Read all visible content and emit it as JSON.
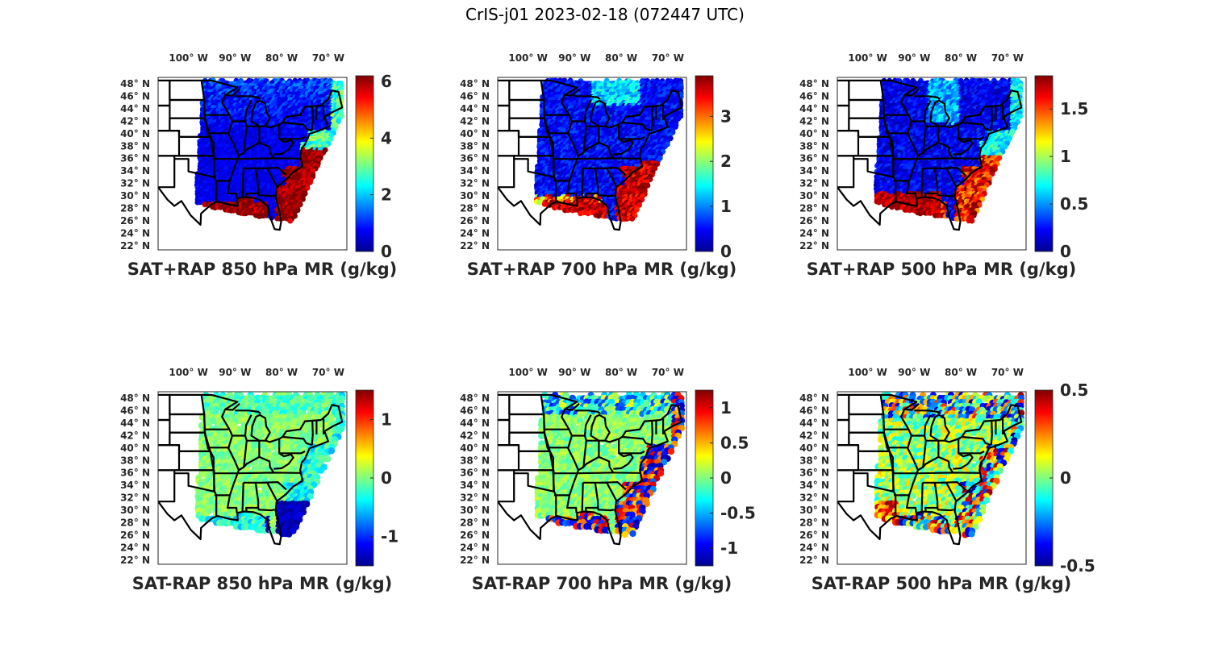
{
  "figure": {
    "title": "CrIS-j01 2023-02-18 (072447 UTC)"
  },
  "colormap": [
    "#00008f",
    "#0000ff",
    "#0080ff",
    "#00ffff",
    "#80ff80",
    "#ffff00",
    "#ff8000",
    "#ff0000",
    "#800000"
  ],
  "chart_data": [
    {
      "type": "heatmap",
      "title": "SAT+RAP 850 hPa MR (g/kg)",
      "xticklabels": [
        "100° W",
        "90° W",
        "80° W",
        "70° W"
      ],
      "yticklabels": [
        "48° N",
        "46° N",
        "44° N",
        "42° N",
        "40° N",
        "38° N",
        "36° N",
        "34° N",
        "32° N",
        "30° N",
        "28° N",
        "26° N",
        "24° N",
        "22° N"
      ],
      "colorbar": {
        "min": 0,
        "max": 6.2,
        "ticks": [
          0,
          2,
          4,
          6
        ],
        "ticklabels": [
          "0",
          "2",
          "4",
          "6"
        ]
      },
      "field": "sum",
      "summary": {
        "land_typical": 0.8,
        "atlantic_coast_max": 6.2
      }
    },
    {
      "type": "heatmap",
      "title": "SAT+RAP 700 hPa MR (g/kg)",
      "xticklabels": [
        "100° W",
        "90° W",
        "80° W",
        "70° W"
      ],
      "yticklabels": [
        "48° N",
        "46° N",
        "44° N",
        "42° N",
        "40° N",
        "38° N",
        "36° N",
        "34° N",
        "32° N",
        "30° N",
        "28° N",
        "26° N",
        "24° N",
        "22° N"
      ],
      "colorbar": {
        "min": 0,
        "max": 3.9,
        "ticks": [
          0,
          1,
          2,
          3
        ],
        "ticklabels": [
          "0",
          "1",
          "2",
          "3"
        ]
      },
      "field": "sum",
      "summary": {
        "land_typical": 0.5,
        "atlantic_coast_max": 3.9
      }
    },
    {
      "type": "heatmap",
      "title": "SAT+RAP 500 hPa MR (g/kg)",
      "xticklabels": [
        "100° W",
        "90° W",
        "80° W",
        "70° W"
      ],
      "yticklabels": [
        "48° N",
        "46° N",
        "44° N",
        "42° N",
        "40° N",
        "38° N",
        "36° N",
        "34° N",
        "32° N",
        "30° N",
        "28° N",
        "26° N",
        "24° N",
        "22° N"
      ],
      "colorbar": {
        "min": 0,
        "max": 1.85,
        "ticks": [
          0,
          0.5,
          1,
          1.5
        ],
        "ticklabels": [
          "0",
          "0.5",
          "1",
          "1.5"
        ]
      },
      "field": "sum",
      "summary": {
        "land_typical": 0.25,
        "gulf_coast_max": 1.85
      }
    },
    {
      "type": "heatmap",
      "title": "SAT-RAP 850 hPa MR (g/kg)",
      "xticklabels": [
        "100° W",
        "90° W",
        "80° W",
        "70° W"
      ],
      "yticklabels": [
        "48° N",
        "46° N",
        "44° N",
        "42° N",
        "40° N",
        "38° N",
        "36° N",
        "34° N",
        "32° N",
        "30° N",
        "28° N",
        "26° N",
        "24° N",
        "22° N"
      ],
      "colorbar": {
        "min": -1.5,
        "max": 1.5,
        "ticks": [
          -1,
          0,
          1
        ],
        "ticklabels": [
          "-1",
          "0",
          "1"
        ]
      },
      "field": "diff",
      "summary": {
        "land_typical": 0,
        "offshore_min": -1.5
      }
    },
    {
      "type": "heatmap",
      "title": "SAT-RAP 700 hPa MR (g/kg)",
      "xticklabels": [
        "100° W",
        "90° W",
        "80° W",
        "70° W"
      ],
      "yticklabels": [
        "48° N",
        "46° N",
        "44° N",
        "42° N",
        "40° N",
        "38° N",
        "36° N",
        "34° N",
        "32° N",
        "30° N",
        "28° N",
        "26° N",
        "24° N",
        "22° N"
      ],
      "colorbar": {
        "min": -1.25,
        "max": 1.25,
        "ticks": [
          -1,
          -0.5,
          0,
          0.5,
          1
        ],
        "ticklabels": [
          "-1",
          "-0.5",
          "0",
          "0.5",
          "1"
        ]
      },
      "field": "diff",
      "summary": {
        "land_typical": 0,
        "offshore_range": [
          -1.25,
          1.25
        ]
      }
    },
    {
      "type": "heatmap",
      "title": "SAT-RAP 500 hPa MR (g/kg)",
      "xticklabels": [
        "100° W",
        "90° W",
        "80° W",
        "70° W"
      ],
      "yticklabels": [
        "48° N",
        "46° N",
        "44° N",
        "42° N",
        "40° N",
        "38° N",
        "36° N",
        "34° N",
        "32° N",
        "30° N",
        "28° N",
        "26° N",
        "24° N",
        "22° N"
      ],
      "colorbar": {
        "min": -0.5,
        "max": 0.5,
        "ticks": [
          -0.5,
          0,
          0.5
        ],
        "ticklabels": [
          "-0.5",
          "0",
          "0.5"
        ]
      },
      "field": "diff",
      "summary": {
        "land_typical": 0,
        "offshore_range": [
          -0.5,
          0.5
        ]
      }
    }
  ]
}
